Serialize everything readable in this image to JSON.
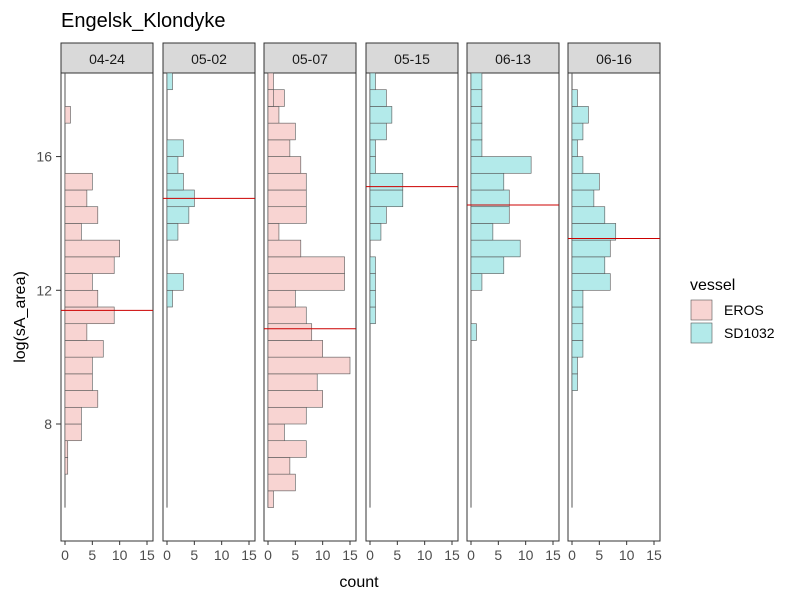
{
  "chart_data": {
    "type": "bar",
    "orientation": "horizontal",
    "title": "Engelsk_Klondyke",
    "xlabel": "count",
    "ylabel": "log(sA_area)",
    "xlim": [
      0,
      15
    ],
    "ylim": [
      4.5,
      18.5
    ],
    "x_ticks": [
      0,
      5,
      10,
      15
    ],
    "y_ticks": [
      8,
      12,
      16
    ],
    "bin_width": 0.5,
    "grid": false,
    "legend": {
      "title": "vessel",
      "position": "right",
      "items": [
        {
          "label": "EROS",
          "fill": "#f8d4d2"
        },
        {
          "label": "SD1032",
          "fill": "#b3eaea"
        }
      ]
    },
    "reference_line_color": "#cc0000",
    "panels": [
      {
        "label": "04-24",
        "series": "EROS",
        "mean_line": 11.4,
        "baseline_range": [
          5.5,
          18.25
        ],
        "bins": [
          [
            6.75,
            0.5
          ],
          [
            7.25,
            0.5
          ],
          [
            7.75,
            3
          ],
          [
            8.25,
            3
          ],
          [
            8.75,
            6
          ],
          [
            9.25,
            5
          ],
          [
            9.75,
            5
          ],
          [
            10.25,
            7
          ],
          [
            10.75,
            4
          ],
          [
            11.25,
            9
          ],
          [
            11.75,
            6
          ],
          [
            12.25,
            5
          ],
          [
            12.75,
            9
          ],
          [
            13.25,
            10
          ],
          [
            13.75,
            3
          ],
          [
            14.25,
            6
          ],
          [
            14.75,
            4
          ],
          [
            15.25,
            5
          ],
          [
            17.25,
            1
          ]
        ]
      },
      {
        "label": "05-02",
        "series": "SD1032",
        "mean_line": 14.75,
        "baseline_range": [
          5.5,
          18.25
        ],
        "bins": [
          [
            11.75,
            1
          ],
          [
            12.25,
            3
          ],
          [
            13.75,
            2
          ],
          [
            14.25,
            4
          ],
          [
            14.75,
            5
          ],
          [
            15.25,
            3
          ],
          [
            15.75,
            2
          ],
          [
            16.25,
            3
          ],
          [
            18.25,
            1
          ]
        ]
      },
      {
        "label": "05-07",
        "series": "EROS",
        "mean_line": 10.85,
        "baseline_range": [
          5.5,
          18.25
        ],
        "bins": [
          [
            5.75,
            1
          ],
          [
            6.25,
            5
          ],
          [
            6.75,
            4
          ],
          [
            7.25,
            7
          ],
          [
            7.75,
            3
          ],
          [
            8.25,
            7
          ],
          [
            8.75,
            10
          ],
          [
            9.25,
            9
          ],
          [
            9.75,
            15
          ],
          [
            10.25,
            10
          ],
          [
            10.75,
            8
          ],
          [
            11.25,
            7
          ],
          [
            11.75,
            5
          ],
          [
            12.25,
            14
          ],
          [
            12.75,
            14
          ],
          [
            13.25,
            6
          ],
          [
            13.75,
            2
          ],
          [
            14.25,
            7
          ],
          [
            14.75,
            7
          ],
          [
            15.25,
            7
          ],
          [
            15.75,
            6
          ],
          [
            16.25,
            4
          ],
          [
            16.75,
            5
          ],
          [
            17.25,
            2
          ],
          [
            17.75,
            3
          ],
          [
            18.25,
            1
          ],
          [
            17.75,
            1
          ]
        ]
      },
      {
        "label": "05-15",
        "series": "SD1032",
        "mean_line": 15.1,
        "baseline_range": [
          5.5,
          18.25
        ],
        "bins": [
          [
            11.25,
            1
          ],
          [
            11.75,
            1
          ],
          [
            12.25,
            1
          ],
          [
            12.75,
            1
          ],
          [
            13.75,
            2
          ],
          [
            14.75,
            6
          ],
          [
            15.25,
            6
          ],
          [
            15.75,
            1
          ],
          [
            16.25,
            1
          ],
          [
            16.75,
            3
          ],
          [
            17.25,
            4
          ],
          [
            17.75,
            3
          ],
          [
            18.25,
            1
          ],
          [
            14.25,
            3
          ]
        ]
      },
      {
        "label": "06-13",
        "series": "SD1032",
        "mean_line": 14.55,
        "baseline_range": [
          5.5,
          18.25
        ],
        "bins": [
          [
            10.75,
            1
          ],
          [
            12.25,
            2
          ],
          [
            12.75,
            6
          ],
          [
            13.25,
            9
          ],
          [
            13.75,
            4
          ],
          [
            14.25,
            7
          ],
          [
            14.75,
            7
          ],
          [
            15.25,
            6
          ],
          [
            15.75,
            11
          ],
          [
            16.25,
            2
          ],
          [
            16.75,
            2
          ],
          [
            17.25,
            2
          ],
          [
            17.75,
            2
          ],
          [
            18.25,
            2
          ]
        ]
      },
      {
        "label": "06-16",
        "series": "SD1032",
        "mean_line": 13.55,
        "baseline_range": [
          5.5,
          18.25
        ],
        "bins": [
          [
            9.25,
            1
          ],
          [
            9.75,
            1
          ],
          [
            10.25,
            2
          ],
          [
            10.75,
            2
          ],
          [
            11.25,
            2
          ],
          [
            11.75,
            2
          ],
          [
            12.25,
            7
          ],
          [
            12.75,
            6
          ],
          [
            13.25,
            7
          ],
          [
            13.75,
            8
          ],
          [
            14.25,
            6
          ],
          [
            14.75,
            4
          ],
          [
            15.25,
            5
          ],
          [
            15.75,
            2
          ],
          [
            16.25,
            1
          ],
          [
            16.75,
            2
          ],
          [
            17.25,
            3
          ],
          [
            17.75,
            1
          ],
          [
            18.25,
            0
          ]
        ]
      }
    ]
  }
}
